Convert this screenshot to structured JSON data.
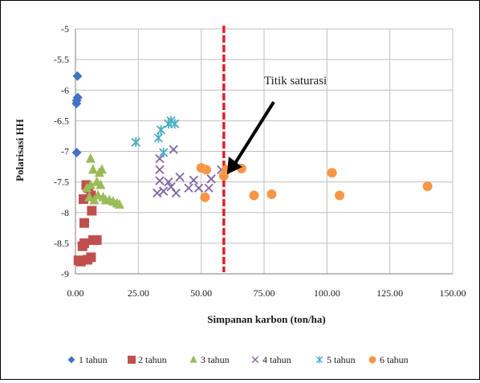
{
  "chart_data": {
    "type": "scatter",
    "title": "",
    "xlabel": "Simpanan karbon (ton/ha)",
    "ylabel": "Polarisasi HH",
    "xlim": [
      0,
      150
    ],
    "ylim": [
      -9,
      -5
    ],
    "x_ticks": [
      "0.00",
      "25.00",
      "50.00",
      "75.00",
      "100.00",
      "125.00",
      "150.00"
    ],
    "y_ticks": [
      "-5",
      "-5.5",
      "-6",
      "-6.5",
      "-7",
      "-7.5",
      "-8",
      "-8.5",
      "-9"
    ],
    "grid": true,
    "legend_position": "bottom",
    "annotation": {
      "text": "Titik saturasi",
      "target": [
        59,
        -7.4
      ]
    },
    "saturation_line_x": 59,
    "series": [
      {
        "name": "1 tahun",
        "marker": "diamond",
        "color": "#4472c4",
        "points": [
          [
            0.8,
            -5.77
          ],
          [
            0.9,
            -6.12
          ],
          [
            0.5,
            -6.17
          ],
          [
            0.4,
            -6.22
          ],
          [
            0.5,
            -7.02
          ]
        ]
      },
      {
        "name": "2 tahun",
        "marker": "square",
        "color": "#c0504d",
        "points": [
          [
            1.2,
            -8.78
          ],
          [
            2.2,
            -8.8
          ],
          [
            2.8,
            -8.55
          ],
          [
            3.5,
            -8.5
          ],
          [
            4.8,
            -8.77
          ],
          [
            6.2,
            -8.73
          ],
          [
            7,
            -8.45
          ],
          [
            8.5,
            -8.45
          ],
          [
            3.5,
            -8.17
          ],
          [
            3.2,
            -7.78
          ],
          [
            4.3,
            -7.55
          ],
          [
            5.2,
            -7.6
          ],
          [
            6.2,
            -7.72
          ],
          [
            6.5,
            -7.97
          ]
        ]
      },
      {
        "name": "3 tahun",
        "marker": "triangle",
        "color": "#9bbb59",
        "points": [
          [
            6,
            -7.12
          ],
          [
            7,
            -7.3
          ],
          [
            9.5,
            -7.35
          ],
          [
            10.5,
            -7.3
          ],
          [
            4.5,
            -7.6
          ],
          [
            6,
            -7.55
          ],
          [
            8.5,
            -7.5
          ],
          [
            10,
            -7.55
          ],
          [
            5.5,
            -7.75
          ],
          [
            7.5,
            -7.8
          ],
          [
            9,
            -7.72
          ],
          [
            11,
            -7.75
          ],
          [
            12,
            -7.8
          ],
          [
            13.5,
            -7.8
          ],
          [
            15,
            -7.82
          ],
          [
            16.5,
            -7.85
          ],
          [
            17.5,
            -7.87
          ]
        ]
      },
      {
        "name": "4 tahun",
        "marker": "x",
        "color": "#8064a2",
        "points": [
          [
            33.5,
            -7.12
          ],
          [
            39,
            -6.97
          ],
          [
            33.5,
            -7.3
          ],
          [
            33.5,
            -7.48
          ],
          [
            37,
            -7.5
          ],
          [
            41.5,
            -7.42
          ],
          [
            45,
            -7.6
          ],
          [
            47,
            -7.47
          ],
          [
            49,
            -7.6
          ],
          [
            53,
            -7.6
          ],
          [
            54,
            -7.45
          ],
          [
            58,
            -7.3
          ],
          [
            32.5,
            -7.68
          ],
          [
            35,
            -7.65
          ],
          [
            40,
            -7.68
          ],
          [
            38,
            -7.58
          ]
        ]
      },
      {
        "name": "5 tahun",
        "marker": "star",
        "color": "#4bacc6",
        "points": [
          [
            24,
            -6.85
          ],
          [
            33,
            -6.78
          ],
          [
            34,
            -6.65
          ],
          [
            35,
            -7.02
          ],
          [
            37,
            -6.55
          ],
          [
            38,
            -6.5
          ],
          [
            39.5,
            -6.55
          ]
        ]
      },
      {
        "name": "6 tahun",
        "marker": "circle",
        "color": "#f79646",
        "points": [
          [
            50,
            -7.27
          ],
          [
            52,
            -7.3
          ],
          [
            51.5,
            -7.75
          ],
          [
            59,
            -7.4
          ],
          [
            60,
            -7.3
          ],
          [
            66,
            -7.28
          ],
          [
            71,
            -7.72
          ],
          [
            78,
            -7.7
          ],
          [
            102,
            -7.35
          ],
          [
            105,
            -7.72
          ],
          [
            140,
            -7.57
          ]
        ]
      }
    ]
  }
}
